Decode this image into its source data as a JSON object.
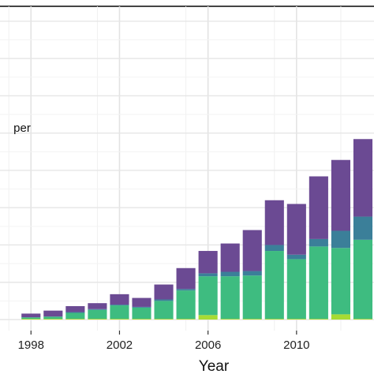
{
  "chart_data": {
    "type": "bar",
    "stacked": true,
    "xlabel": "Year",
    "ylabel": "",
    "x_tick_labels": [
      "1998",
      "2002",
      "2006",
      "2010"
    ],
    "x_tick_years": [
      1998,
      2002,
      2006,
      2010
    ],
    "legend_fragment": "per",
    "grid": true,
    "categories": [
      1998,
      1999,
      2000,
      2001,
      2002,
      2003,
      2004,
      2005,
      2006,
      2007,
      2008,
      2009,
      2010,
      2011,
      2012,
      2013
    ],
    "series": [
      {
        "color": "#a8db34",
        "values": [
          1,
          1,
          1,
          1,
          1,
          1,
          1,
          1,
          6,
          1,
          1,
          1,
          1,
          1,
          7,
          1
        ]
      },
      {
        "color": "#3ebc80",
        "values": [
          2,
          3,
          8,
          12,
          18,
          15,
          24,
          38,
          52,
          57,
          58,
          91,
          80,
          97,
          89,
          106
        ]
      },
      {
        "color": "#3b7f99",
        "values": [
          0,
          0,
          1,
          1,
          1,
          1,
          2,
          2,
          4,
          6,
          6,
          8,
          6,
          10,
          23,
          31
        ]
      },
      {
        "color": "#6b4a93",
        "values": [
          5,
          8,
          8,
          8,
          14,
          12,
          20,
          28,
          30,
          38,
          55,
          60,
          68,
          84,
          95,
          104
        ]
      }
    ],
    "ylim": [
      0,
      420
    ],
    "y_gridlines": [
      0,
      50,
      100,
      150,
      200,
      250,
      300,
      350,
      400
    ],
    "xlim": [
      1996.6,
      2013.5
    ]
  }
}
